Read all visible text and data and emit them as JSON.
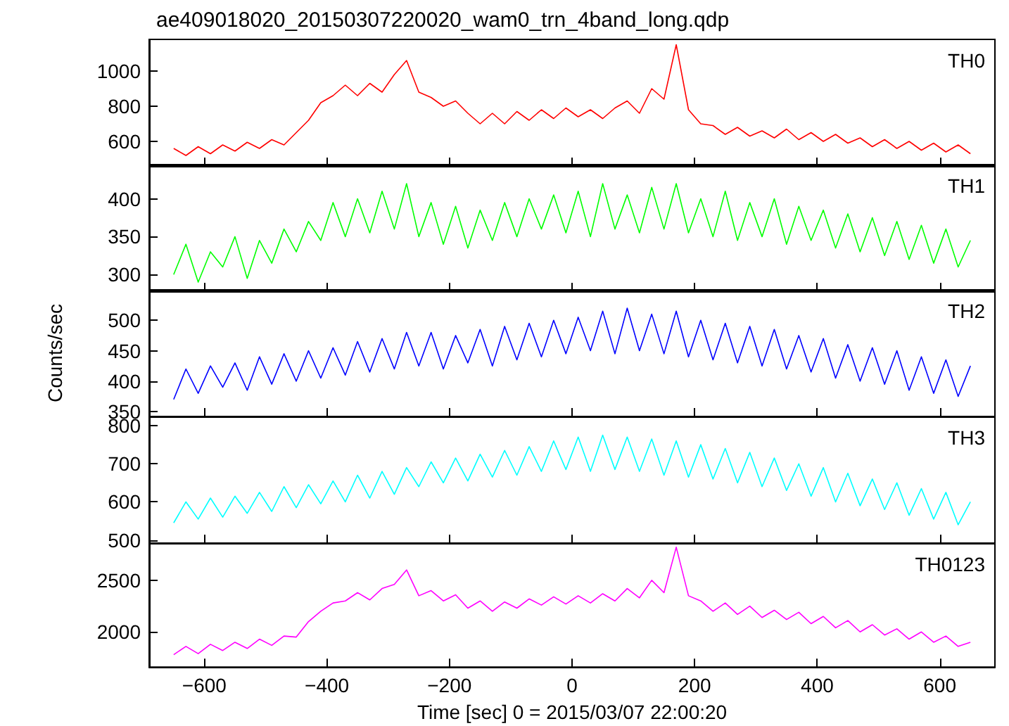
{
  "chart_data": [
    {
      "type": "line",
      "title": "ae409018020_20150307220020_wam0_trn_4band_long.qdp",
      "x": [
        -650,
        -630,
        -610,
        -590,
        -570,
        -550,
        -530,
        -510,
        -490,
        -470,
        -450,
        -430,
        -410,
        -390,
        -370,
        -350,
        -330,
        -310,
        -290,
        -270,
        -250,
        -230,
        -210,
        -190,
        -170,
        -150,
        -130,
        -110,
        -90,
        -70,
        -50,
        -30,
        -10,
        10,
        30,
        50,
        70,
        90,
        110,
        130,
        150,
        170,
        190,
        210,
        230,
        250,
        270,
        290,
        310,
        330,
        350,
        370,
        390,
        410,
        430,
        450,
        470,
        490,
        510,
        530,
        550,
        570,
        590,
        610,
        630,
        650
      ],
      "marker": "none",
      "tick_labels": "y",
      "xlim": [
        -690,
        690
      ],
      "xticks": [
        -600,
        -400,
        -200,
        0,
        200,
        400,
        600
      ],
      "ylim": [
        460,
        1180
      ],
      "yticks": [
        600,
        800,
        1000
      ],
      "series": [
        {
          "name": "TH0",
          "color": "#ff0000",
          "values": [
            560,
            520,
            570,
            530,
            580,
            545,
            595,
            560,
            610,
            580,
            650,
            720,
            820,
            860,
            920,
            860,
            930,
            880,
            980,
            1060,
            880,
            850,
            800,
            830,
            760,
            700,
            760,
            700,
            770,
            720,
            780,
            730,
            790,
            740,
            780,
            730,
            790,
            830,
            760,
            900,
            840,
            1150,
            780,
            700,
            690,
            640,
            680,
            630,
            660,
            620,
            670,
            610,
            650,
            600,
            640,
            590,
            620,
            570,
            610,
            560,
            600,
            550,
            590,
            540,
            580,
            530
          ]
        }
      ]
    },
    {
      "type": "line",
      "x": [
        -650,
        -630,
        -610,
        -590,
        -570,
        -550,
        -530,
        -510,
        -490,
        -470,
        -450,
        -430,
        -410,
        -390,
        -370,
        -350,
        -330,
        -310,
        -290,
        -270,
        -250,
        -230,
        -210,
        -190,
        -170,
        -150,
        -130,
        -110,
        -90,
        -70,
        -50,
        -30,
        -10,
        10,
        30,
        50,
        70,
        90,
        110,
        130,
        150,
        170,
        190,
        210,
        230,
        250,
        270,
        290,
        310,
        330,
        350,
        370,
        390,
        410,
        430,
        450,
        470,
        490,
        510,
        530,
        550,
        570,
        590,
        610,
        630,
        650
      ],
      "marker": "none",
      "tick_labels": "y",
      "xlim": [
        -690,
        690
      ],
      "xticks": [
        -600,
        -400,
        -200,
        0,
        200,
        400,
        600
      ],
      "ylim": [
        278,
        445
      ],
      "yticks": [
        300,
        350,
        400
      ],
      "series": [
        {
          "name": "TH1",
          "color": "#00ff00",
          "values": [
            300,
            340,
            290,
            330,
            310,
            350,
            295,
            345,
            315,
            360,
            330,
            370,
            345,
            395,
            350,
            400,
            355,
            410,
            360,
            420,
            350,
            395,
            340,
            390,
            335,
            385,
            345,
            395,
            350,
            400,
            360,
            405,
            355,
            410,
            350,
            420,
            360,
            405,
            355,
            415,
            360,
            420,
            355,
            400,
            350,
            410,
            345,
            395,
            350,
            400,
            340,
            390,
            345,
            385,
            335,
            380,
            330,
            375,
            325,
            370,
            320,
            365,
            315,
            360,
            310,
            345
          ]
        }
      ]
    },
    {
      "type": "line",
      "ylabel": "Counts/sec",
      "x": [
        -650,
        -630,
        -610,
        -590,
        -570,
        -550,
        -530,
        -510,
        -490,
        -470,
        -450,
        -430,
        -410,
        -390,
        -370,
        -350,
        -330,
        -310,
        -290,
        -270,
        -250,
        -230,
        -210,
        -190,
        -170,
        -150,
        -130,
        -110,
        -90,
        -70,
        -50,
        -30,
        -10,
        10,
        30,
        50,
        70,
        90,
        110,
        130,
        150,
        170,
        190,
        210,
        230,
        250,
        270,
        290,
        310,
        330,
        350,
        370,
        390,
        410,
        430,
        450,
        470,
        490,
        510,
        530,
        550,
        570,
        590,
        610,
        630,
        650
      ],
      "marker": "none",
      "tick_labels": "y",
      "xlim": [
        -690,
        690
      ],
      "xticks": [
        -600,
        -400,
        -200,
        0,
        200,
        400,
        600
      ],
      "ylim": [
        342,
        550
      ],
      "yticks": [
        350,
        400,
        450,
        500
      ],
      "series": [
        {
          "name": "TH2",
          "color": "#0000ff",
          "values": [
            370,
            420,
            380,
            425,
            390,
            430,
            385,
            440,
            395,
            445,
            400,
            450,
            405,
            455,
            410,
            465,
            415,
            470,
            420,
            480,
            425,
            480,
            420,
            475,
            430,
            485,
            425,
            490,
            435,
            495,
            440,
            500,
            445,
            505,
            450,
            515,
            445,
            520,
            450,
            510,
            445,
            515,
            440,
            500,
            435,
            495,
            430,
            490,
            425,
            485,
            420,
            475,
            415,
            470,
            405,
            460,
            400,
            455,
            395,
            450,
            385,
            440,
            380,
            435,
            375,
            425
          ]
        }
      ]
    },
    {
      "type": "line",
      "x": [
        -650,
        -630,
        -610,
        -590,
        -570,
        -550,
        -530,
        -510,
        -490,
        -470,
        -450,
        -430,
        -410,
        -390,
        -370,
        -350,
        -330,
        -310,
        -290,
        -270,
        -250,
        -230,
        -210,
        -190,
        -170,
        -150,
        -130,
        -110,
        -90,
        -70,
        -50,
        -30,
        -10,
        10,
        30,
        50,
        70,
        90,
        110,
        130,
        150,
        170,
        190,
        210,
        230,
        250,
        270,
        290,
        310,
        330,
        350,
        370,
        390,
        410,
        430,
        450,
        470,
        490,
        510,
        530,
        550,
        570,
        590,
        610,
        630,
        650
      ],
      "marker": "none",
      "tick_labels": "y",
      "xlim": [
        -690,
        690
      ],
      "xticks": [
        -600,
        -400,
        -200,
        0,
        200,
        400,
        600
      ],
      "ylim": [
        492,
        824
      ],
      "yticks": [
        500,
        600,
        700,
        800
      ],
      "series": [
        {
          "name": "TH3",
          "color": "#00ffff",
          "values": [
            545,
            600,
            555,
            610,
            560,
            615,
            570,
            625,
            575,
            640,
            585,
            645,
            595,
            655,
            600,
            670,
            610,
            680,
            620,
            690,
            640,
            705,
            650,
            715,
            655,
            725,
            665,
            735,
            670,
            745,
            680,
            760,
            685,
            770,
            680,
            775,
            685,
            770,
            680,
            765,
            670,
            760,
            665,
            750,
            660,
            740,
            650,
            730,
            640,
            715,
            630,
            700,
            615,
            690,
            600,
            675,
            590,
            660,
            580,
            650,
            565,
            635,
            555,
            625,
            540,
            600
          ]
        }
      ]
    },
    {
      "type": "line",
      "xlabel": "Time [sec] 0 = 2015/03/07 22:00:20",
      "x": [
        -650,
        -630,
        -610,
        -590,
        -570,
        -550,
        -530,
        -510,
        -490,
        -470,
        -450,
        -430,
        -410,
        -390,
        -370,
        -350,
        -330,
        -310,
        -290,
        -270,
        -250,
        -230,
        -210,
        -190,
        -170,
        -150,
        -130,
        -110,
        -90,
        -70,
        -50,
        -30,
        -10,
        10,
        30,
        50,
        70,
        90,
        110,
        130,
        150,
        170,
        190,
        210,
        230,
        250,
        270,
        290,
        310,
        330,
        350,
        370,
        390,
        410,
        430,
        450,
        470,
        490,
        510,
        530,
        550,
        570,
        590,
        610,
        630,
        650
      ],
      "marker": "none",
      "xlim": [
        -690,
        690
      ],
      "xticks": [
        -600,
        -400,
        -200,
        0,
        200,
        400,
        600
      ],
      "ylim": [
        1660,
        2860
      ],
      "yticks": [
        2000,
        2500
      ],
      "series": [
        {
          "name": "TH0123",
          "color": "#ff00ff",
          "values": [
            1780,
            1860,
            1790,
            1880,
            1820,
            1900,
            1840,
            1930,
            1870,
            1960,
            1950,
            2100,
            2200,
            2280,
            2300,
            2380,
            2310,
            2420,
            2460,
            2600,
            2350,
            2400,
            2300,
            2360,
            2230,
            2300,
            2200,
            2290,
            2230,
            2320,
            2260,
            2340,
            2270,
            2350,
            2280,
            2370,
            2300,
            2420,
            2330,
            2500,
            2380,
            2820,
            2350,
            2300,
            2200,
            2280,
            2170,
            2250,
            2140,
            2210,
            2120,
            2190,
            2080,
            2150,
            2040,
            2110,
            2000,
            2070,
            1970,
            2030,
            1930,
            2000,
            1900,
            1960,
            1860,
            1900
          ]
        }
      ]
    }
  ]
}
